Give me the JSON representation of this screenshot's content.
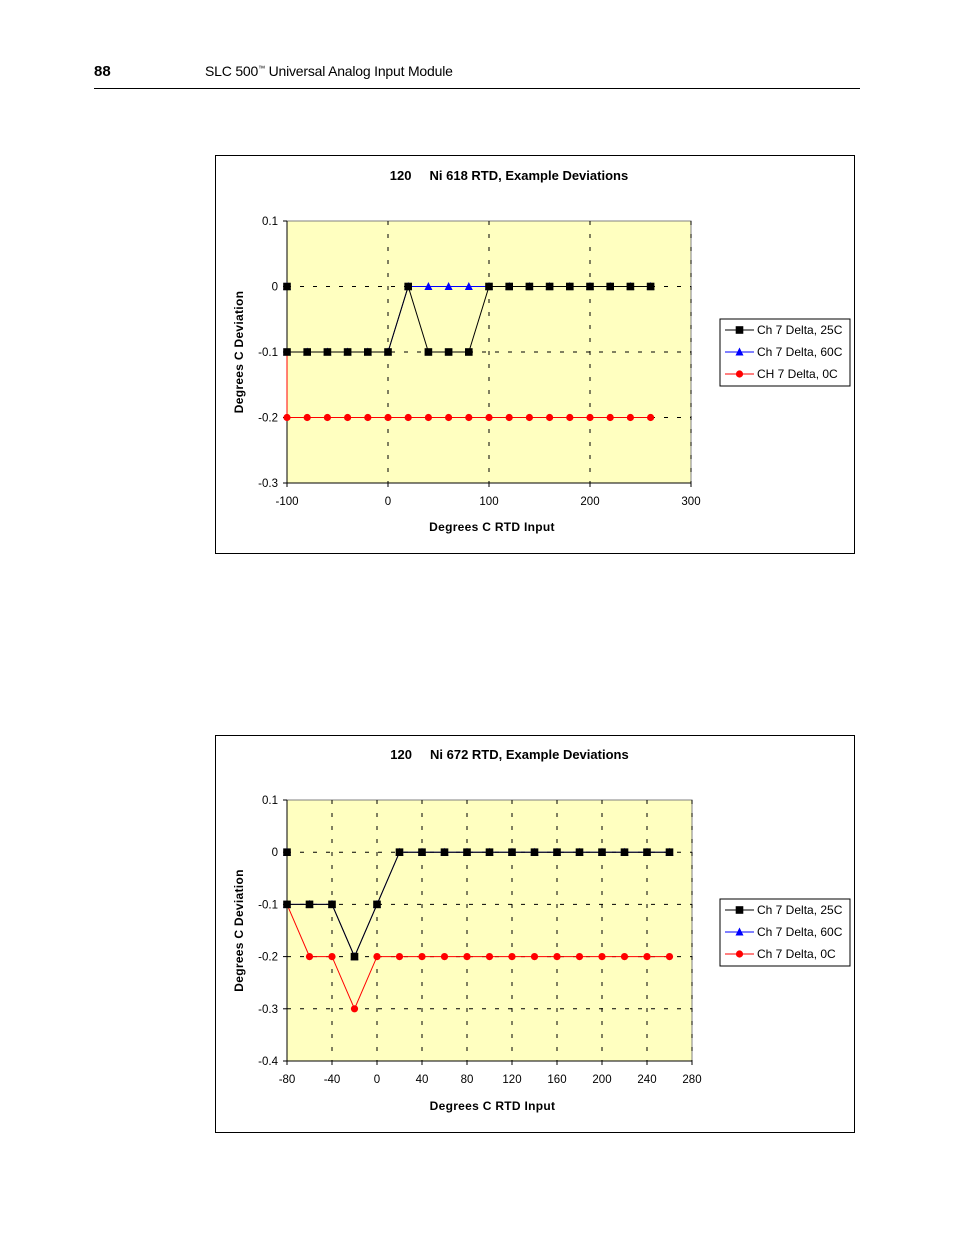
{
  "header": {
    "page_number": "88",
    "title_prefix": "SLC 500",
    "trademark": "™",
    "title_suffix": " Universal Analog Input Module"
  },
  "chart_data": [
    {
      "type": "line",
      "title_num": "120",
      "title_text": "Ni 618 RTD, Example Deviations",
      "xlabel": "Degrees C RTD Input",
      "ylabel": "Degrees C Deviation",
      "xlim": [
        -100,
        300
      ],
      "ylim": [
        -0.3,
        0.1
      ],
      "xticks": [
        -100,
        0,
        100,
        200,
        300
      ],
      "yticks": [
        0.1,
        0,
        -0.1,
        -0.2,
        -0.3
      ],
      "xtick_labels": [
        "-100",
        "0",
        "100",
        "200",
        "300"
      ],
      "ytick_labels": [
        "0.1",
        "0",
        "-0.1",
        "-0.2",
        "-0.3"
      ],
      "grid": true,
      "legend_position": "right",
      "plot_background": "#ffffc0",
      "x": [
        -100,
        -100,
        -80,
        -60,
        -40,
        -20,
        0,
        20,
        40,
        60,
        80,
        100,
        120,
        140,
        160,
        180,
        200,
        220,
        240,
        260
      ],
      "series": [
        {
          "name": "Ch 7 Delta, 25C",
          "color": "#000000",
          "marker": "square",
          "values": [
            0,
            -0.1,
            -0.1,
            -0.1,
            -0.1,
            -0.1,
            -0.1,
            0,
            -0.1,
            -0.1,
            -0.1,
            0,
            0,
            0,
            0,
            0,
            0,
            0,
            0,
            0
          ]
        },
        {
          "name": "Ch 7 Delta, 60C",
          "color": "#0000ff",
          "marker": "triangle",
          "values": [
            0,
            -0.1,
            -0.1,
            -0.1,
            -0.1,
            -0.1,
            -0.1,
            0,
            0,
            0,
            0,
            0,
            0,
            0,
            0,
            0,
            0,
            0,
            0,
            0
          ]
        },
        {
          "name": "CH 7 Delta, 0C",
          "color": "#ff0000",
          "marker": "circle",
          "values": [
            0,
            -0.2,
            -0.2,
            -0.2,
            -0.2,
            -0.2,
            -0.2,
            -0.2,
            -0.2,
            -0.2,
            -0.2,
            -0.2,
            -0.2,
            -0.2,
            -0.2,
            -0.2,
            -0.2,
            -0.2,
            -0.2,
            -0.2
          ]
        }
      ]
    },
    {
      "type": "line",
      "title_num": "120",
      "title_text": "Ni 672 RTD, Example Deviations",
      "xlabel": "Degrees C RTD Input",
      "ylabel": "Degrees C Deviation",
      "xlim": [
        -80,
        280
      ],
      "ylim": [
        -0.4,
        0.1
      ],
      "xticks": [
        -80,
        -40,
        0,
        40,
        80,
        120,
        160,
        200,
        240,
        280
      ],
      "yticks": [
        0.1,
        0,
        -0.1,
        -0.2,
        -0.3,
        -0.4
      ],
      "xtick_labels": [
        "-80",
        "-40",
        "0",
        "40",
        "80",
        "120",
        "160",
        "200",
        "240",
        "280"
      ],
      "ytick_labels": [
        "0.1",
        "0",
        "-0.1",
        "-0.2",
        "-0.3",
        "-0.4"
      ],
      "grid": true,
      "legend_position": "right",
      "plot_background": "#ffffc0",
      "x": [
        -80,
        -80,
        -60,
        -40,
        -20,
        0,
        20,
        40,
        60,
        80,
        100,
        120,
        140,
        160,
        180,
        200,
        220,
        240,
        260
      ],
      "series": [
        {
          "name": "Ch 7 Delta, 25C",
          "color": "#000000",
          "marker": "square",
          "values": [
            0,
            -0.1,
            -0.1,
            -0.1,
            -0.2,
            -0.1,
            0,
            0,
            0,
            0,
            0,
            0,
            0,
            0,
            0,
            0,
            0,
            0,
            0
          ]
        },
        {
          "name": "Ch 7 Delta, 60C",
          "color": "#0000ff",
          "marker": "triangle",
          "values": [
            0,
            -0.1,
            -0.1,
            -0.1,
            -0.2,
            -0.1,
            0,
            0,
            0,
            0,
            0,
            0,
            0,
            0,
            0,
            0,
            0,
            0,
            0
          ]
        },
        {
          "name": "Ch 7 Delta, 0C",
          "color": "#ff0000",
          "marker": "circle",
          "values": [
            0,
            -0.1,
            -0.2,
            -0.2,
            -0.3,
            -0.2,
            -0.2,
            -0.2,
            -0.2,
            -0.2,
            -0.2,
            -0.2,
            -0.2,
            -0.2,
            -0.2,
            -0.2,
            -0.2,
            -0.2,
            -0.2
          ]
        }
      ]
    }
  ]
}
